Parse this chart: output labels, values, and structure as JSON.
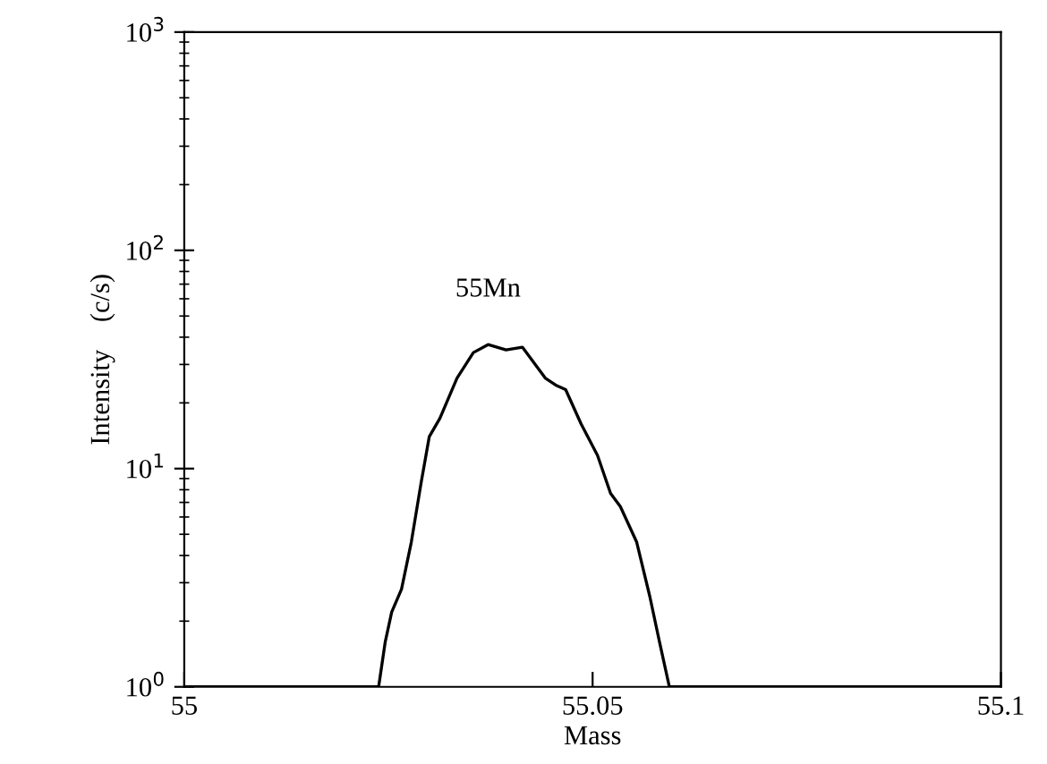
{
  "chart_data": {
    "type": "line",
    "xlabel": "Mass",
    "ylabel": "Intensity    (c/s)",
    "log": "y",
    "grid": false,
    "legend": false,
    "x": [
      55.0,
      55.0238,
      55.0246,
      55.0254,
      55.0266,
      55.0278,
      55.029,
      55.03,
      55.0313,
      55.0334,
      55.0354,
      55.0372,
      55.0394,
      55.0414,
      55.0442,
      55.0456,
      55.0467,
      55.0486,
      55.0506,
      55.0522,
      55.0534,
      55.0554,
      55.057,
      55.0582,
      55.0594,
      55.1
    ],
    "series": [
      {
        "color": "#000000",
        "values": [
          1,
          1,
          1.6,
          2.2,
          2.8,
          4.6,
          8.6,
          14,
          17,
          26,
          34,
          37,
          35,
          36,
          26,
          24,
          23,
          16,
          11.5,
          7.7,
          6.7,
          4.6,
          2.6,
          1.6,
          1,
          1
        ]
      }
    ],
    "xlim": [
      55,
      55.1
    ],
    "xticks": [
      55,
      {
        "value": 55.05,
        "label": "55.05"
      },
      {
        "value": 55.1,
        "label": "55.1"
      }
    ],
    "ylim": [
      1,
      1000
    ],
    "yticks": [
      {
        "value": 1,
        "label": "10$^{0}$"
      },
      {
        "value": 10,
        "label": "10$^{1}$"
      },
      {
        "value": 100,
        "label": "10$^{2}$"
      },
      {
        "value": 1000,
        "label": "10$^{3}$"
      }
    ],
    "annotations": [
      "55Mn"
    ]
  }
}
